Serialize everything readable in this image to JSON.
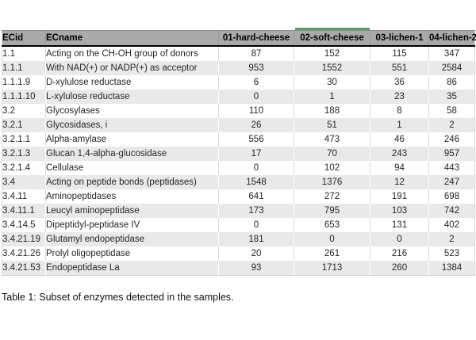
{
  "colors": {
    "accent_green": "#5a9c6e",
    "header_bg": "#a9a9a9",
    "band_gray": "#e9e9e9",
    "header_rule": "#000000"
  },
  "table": {
    "columns": [
      "ECid",
      "ECname",
      "01-hard-cheese",
      "02-soft-cheese",
      "03-lichen-1",
      "04-lichen-2"
    ],
    "accented_column": "02-soft-cheese",
    "rows": [
      {
        "ecid": "1.1",
        "ecname": "Acting on the CH-OH group of donors",
        "values": [
          "87",
          "152",
          "115",
          "347"
        ]
      },
      {
        "ecid": "1.1.1",
        "ecname": "With NAD(+) or NADP(+) as acceptor",
        "values": [
          "953",
          "1552",
          "551",
          "2584"
        ]
      },
      {
        "ecid": "1.1.1.9",
        "ecname": "D-xylulose reductase",
        "values": [
          "6",
          "30",
          "36",
          "86"
        ]
      },
      {
        "ecid": "1.1.1.10",
        "ecname": "L-xylulose reductase",
        "values": [
          "0",
          "1",
          "23",
          "35"
        ]
      },
      {
        "ecid": "3.2",
        "ecname": "Glycosylases",
        "values": [
          "110",
          "188",
          "8",
          "58"
        ]
      },
      {
        "ecid": "3.2.1",
        "ecname": "Glycosidases, i",
        "values": [
          "26",
          "51",
          "1",
          "2"
        ]
      },
      {
        "ecid": "3.2.1.1",
        "ecname": "Alpha-amylase",
        "values": [
          "556",
          "473",
          "46",
          "246"
        ]
      },
      {
        "ecid": "3.2.1.3",
        "ecname": "Glucan 1,4-alpha-glucosidase",
        "values": [
          "17",
          "70",
          "243",
          "957"
        ]
      },
      {
        "ecid": "3.2.1.4",
        "ecname": "Cellulase",
        "values": [
          "0",
          "102",
          "94",
          "443"
        ]
      },
      {
        "ecid": "3.4",
        "ecname": "Acting on peptide bonds (peptidases)",
        "values": [
          "1548",
          "1376",
          "12",
          "247"
        ]
      },
      {
        "ecid": "3.4.11",
        "ecname": "Aminopeptidases",
        "values": [
          "641",
          "272",
          "191",
          "698"
        ]
      },
      {
        "ecid": "3.4.11.1",
        "ecname": "Leucyl aminopeptidase",
        "values": [
          "173",
          "795",
          "103",
          "742"
        ]
      },
      {
        "ecid": "3.4.14.5",
        "ecname": "Dipeptidyl-peptidase IV",
        "values": [
          "0",
          "653",
          "131",
          "402"
        ]
      },
      {
        "ecid": "3.4.21.19",
        "ecname": "Glutamyl endopeptidase",
        "values": [
          "181",
          "0",
          "0",
          "2"
        ]
      },
      {
        "ecid": "3.4.21.26",
        "ecname": "Prolyl oligopeptidase",
        "values": [
          "20",
          "261",
          "216",
          "523"
        ]
      },
      {
        "ecid": "3.4.21.53",
        "ecname": "Endopeptidase La",
        "values": [
          "93",
          "1713",
          "260",
          "1384"
        ]
      }
    ]
  },
  "caption": "Table 1: Subset of enzymes detected in the samples."
}
